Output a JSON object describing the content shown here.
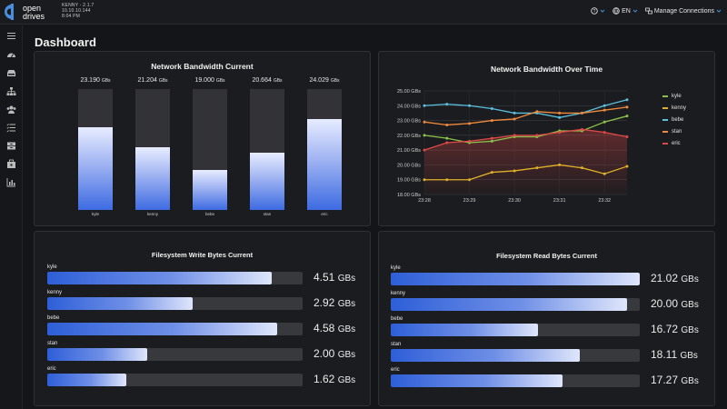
{
  "brand": {
    "line1": "open",
    "line2": "drives"
  },
  "system": {
    "line1": "KENNY - 2.1.7",
    "line2": "10.10.10.144",
    "line3": "8:04 PM"
  },
  "topbar": {
    "help_icon": "question-circle-icon",
    "language": "EN",
    "manage_connections": "Manage Connections"
  },
  "sidebar": {
    "icons": [
      "menu-icon",
      "dashboard-icon",
      "storage-icon",
      "network-icon",
      "users-icon",
      "list-icon",
      "archive-icon",
      "toolbox-icon",
      "analytics-icon"
    ]
  },
  "page": {
    "title": "Dashboard"
  },
  "accent": "#3d6be2",
  "network_bandwidth_current": {
    "title": "Network Bandwidth Current",
    "unit": "GBs",
    "chart_data": {
      "type": "bar",
      "categories": [
        "kyle",
        "kenny",
        "bebe",
        "stan",
        "eric"
      ],
      "values": [
        23.19,
        21.204,
        19.0,
        20.664,
        24.029
      ],
      "value_labels": [
        "23.190",
        "21.204",
        "19.000",
        "20.664",
        "24.029"
      ],
      "ylim": [
        15,
        27
      ]
    }
  },
  "network_bandwidth_over_time": {
    "title": "Network Bandwidth Over Time",
    "chart_data": {
      "type": "line",
      "x": [
        "23:28",
        "23:28:30",
        "23:29",
        "23:29:30",
        "23:30",
        "23:30:30",
        "23:31",
        "23:31:30",
        "23:32",
        "23:32:30"
      ],
      "x_ticks": [
        "23:28",
        "23:29",
        "23:30",
        "23:31",
        "23:32"
      ],
      "y_ticks": [
        "25.00 GBs",
        "24.00 GBs",
        "23.00 GBs",
        "22.00 GBs",
        "21.00 GBs",
        "20.00 GBs",
        "19.00 GBs",
        "18.00 GBs"
      ],
      "ylim": [
        18,
        25
      ],
      "series": [
        {
          "name": "kyle",
          "color": "#8bc34a",
          "values": [
            22.0,
            21.8,
            21.5,
            21.6,
            21.9,
            21.9,
            22.3,
            22.3,
            22.9,
            23.3
          ]
        },
        {
          "name": "kenny",
          "color": "#e0b028",
          "values": [
            19.0,
            19.0,
            19.0,
            19.5,
            19.6,
            19.8,
            20.0,
            19.8,
            19.4,
            19.9
          ]
        },
        {
          "name": "bebe",
          "color": "#5bc0de",
          "values": [
            24.0,
            24.1,
            24.0,
            23.8,
            23.5,
            23.5,
            23.2,
            23.5,
            24.0,
            24.4
          ]
        },
        {
          "name": "stan",
          "color": "#f08a3c",
          "values": [
            22.9,
            22.7,
            22.8,
            23.0,
            23.1,
            23.6,
            23.5,
            23.5,
            23.7,
            23.9
          ]
        },
        {
          "name": "eric",
          "color": "#e04848",
          "values": [
            21.0,
            21.5,
            21.6,
            21.8,
            22.0,
            22.0,
            22.2,
            22.4,
            22.2,
            21.9
          ]
        }
      ]
    }
  },
  "fs_write": {
    "title": "Filesystem Write Bytes Current",
    "unit": "GBs",
    "rows": [
      {
        "name": "kyle",
        "value": "4.51",
        "fraction": 0.88
      },
      {
        "name": "kenny",
        "value": "2.92",
        "fraction": 0.57
      },
      {
        "name": "bebe",
        "value": "4.58",
        "fraction": 0.9
      },
      {
        "name": "stan",
        "value": "2.00",
        "fraction": 0.39
      },
      {
        "name": "eric",
        "value": "1.62",
        "fraction": 0.31
      }
    ]
  },
  "fs_read": {
    "title": "Filesystem Read Bytes Current",
    "unit": "GBs",
    "rows": [
      {
        "name": "kyle",
        "value": "21.02",
        "fraction": 1.0
      },
      {
        "name": "kenny",
        "value": "20.00",
        "fraction": 0.95
      },
      {
        "name": "bebe",
        "value": "16.72",
        "fraction": 0.59
      },
      {
        "name": "stan",
        "value": "18.11",
        "fraction": 0.76
      },
      {
        "name": "eric",
        "value": "17.27",
        "fraction": 0.69
      }
    ]
  }
}
